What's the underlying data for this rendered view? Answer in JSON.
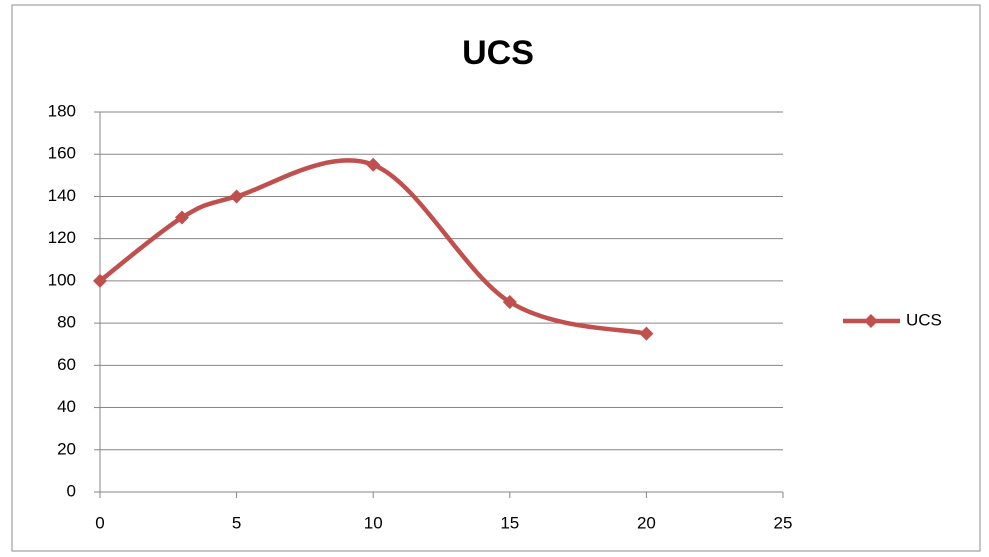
{
  "chart_data": {
    "type": "line",
    "title": "UCS",
    "x": [
      0,
      3,
      5,
      10,
      15,
      20
    ],
    "series": [
      {
        "name": "UCS",
        "color": "#c0504d",
        "values": [
          100,
          130,
          140,
          155,
          90,
          75
        ]
      }
    ],
    "xlim": [
      0,
      25
    ],
    "xticks": [
      0,
      5,
      10,
      15,
      20,
      25
    ],
    "ylim": [
      0,
      180
    ],
    "yticks": [
      0,
      20,
      40,
      60,
      80,
      100,
      120,
      140,
      160,
      180
    ],
    "grid": true,
    "smooth": true,
    "marker": "diamond",
    "legend": "right"
  }
}
